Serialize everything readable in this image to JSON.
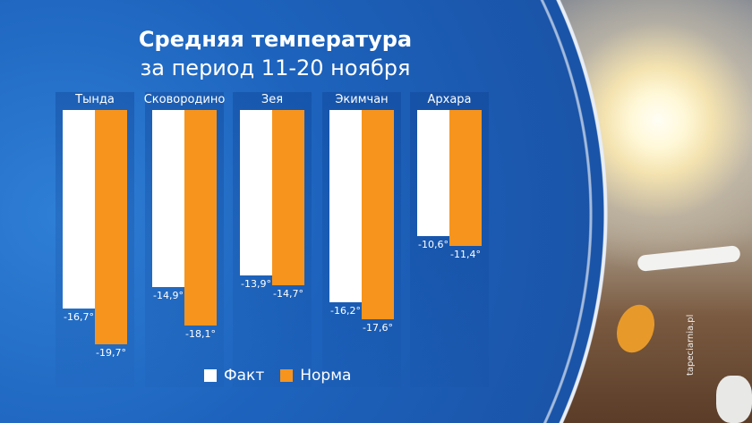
{
  "chart_data": {
    "type": "bar",
    "title": "Средняя температура",
    "subtitle": "за период 11-20 ноября",
    "categories": [
      "Тында",
      "Сковородино",
      "Зея",
      "Экимчан",
      "Архара"
    ],
    "series": [
      {
        "name": "Факт",
        "color": "#ffffff",
        "values": [
          -16.7,
          -14.9,
          -13.9,
          -16.2,
          -10.6
        ],
        "labels": [
          "-16,7°",
          "-14,9°",
          "-13,9°",
          "-16,2°",
          "-10,6°"
        ]
      },
      {
        "name": "Норма",
        "color": "#f7941d",
        "values": [
          -19.7,
          -18.1,
          -14.7,
          -17.6,
          -11.4
        ],
        "labels": [
          "-19,7°",
          "-18,1°",
          "-14,7°",
          "-17,6°",
          "-11,4°"
        ]
      }
    ],
    "ylim": [
      -20,
      0
    ],
    "legend": "bottom"
  },
  "watermark": "tapeciarnia.pl"
}
